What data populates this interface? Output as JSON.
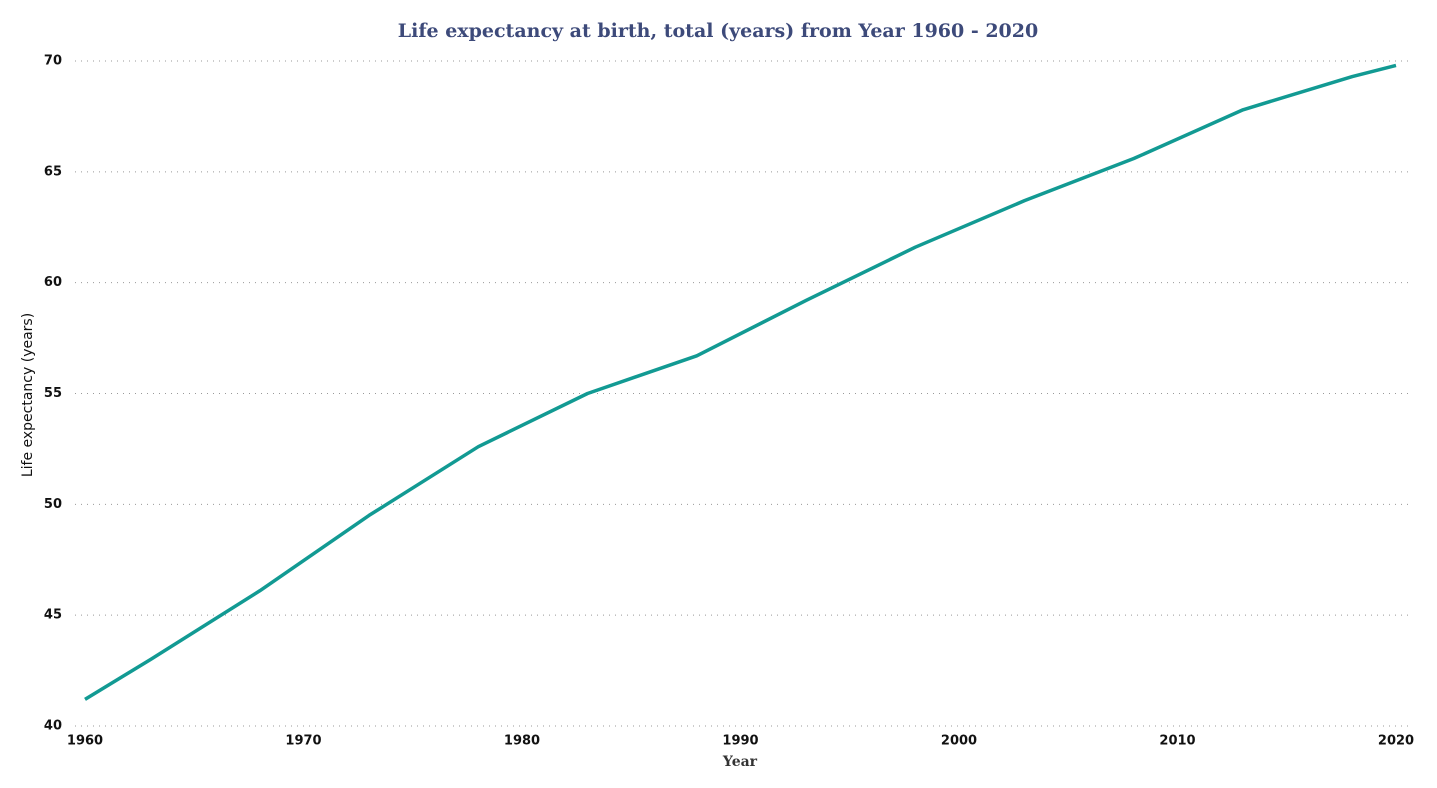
{
  "chart_data": {
    "type": "line",
    "title": "Life expectancy at birth, total (years) from Year 1960 - 2020",
    "x_label": "Year",
    "y_label": "Life expectancy (years)",
    "x": [
      1960,
      1963,
      1968,
      1973,
      1978,
      1983,
      1988,
      1993,
      1998,
      2003,
      2008,
      2013,
      2018,
      2020
    ],
    "series": [
      {
        "name": "Life expectancy",
        "color": "#129a93",
        "values": [
          41.2,
          43.0,
          46.1,
          49.5,
          52.6,
          55.0,
          56.7,
          59.2,
          61.6,
          63.7,
          65.6,
          67.8,
          69.3,
          69.8
        ]
      }
    ],
    "xlim": [
      1960,
      2020
    ],
    "xticks": [
      1960,
      1970,
      1980,
      1990,
      2000,
      2010,
      2020
    ],
    "ylim": [
      40,
      70
    ],
    "yticks": [
      40,
      45,
      50,
      55,
      60,
      65,
      70
    ],
    "grid": true
  }
}
